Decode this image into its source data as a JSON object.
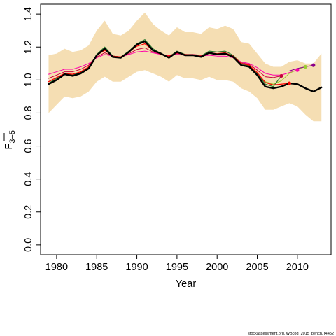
{
  "chart_data": {
    "type": "line",
    "xlabel": "Year",
    "ylabel_main": "F",
    "ylabel_sub": "3−5",
    "xlim": [
      1978,
      2014.2
    ],
    "ylim": [
      -0.06,
      1.46
    ],
    "xticks": [
      1980,
      1985,
      1990,
      1995,
      2000,
      2005,
      2010
    ],
    "yticks": [
      0.0,
      0.2,
      0.4,
      0.6,
      0.8,
      1.0,
      1.2,
      1.4
    ],
    "ytick_labels": [
      "0.0",
      "0.2",
      "0.4",
      "0.6",
      "0.8",
      "1.0",
      "1.2",
      "1.4"
    ],
    "grid": false,
    "band": {
      "color": "#f5deb3",
      "x": [
        1979,
        1980,
        1981,
        1982,
        1983,
        1984,
        1985,
        1986,
        1987,
        1988,
        1989,
        1990,
        1991,
        1992,
        1993,
        1994,
        1995,
        1996,
        1997,
        1998,
        1999,
        2000,
        2001,
        2002,
        2003,
        2004,
        2005,
        2006,
        2007,
        2008,
        2009,
        2010,
        2011,
        2012,
        2013
      ],
      "upper": [
        1.15,
        1.16,
        1.19,
        1.17,
        1.18,
        1.21,
        1.3,
        1.36,
        1.28,
        1.27,
        1.3,
        1.36,
        1.41,
        1.34,
        1.3,
        1.27,
        1.32,
        1.29,
        1.29,
        1.28,
        1.32,
        1.31,
        1.33,
        1.31,
        1.23,
        1.22,
        1.16,
        1.1,
        1.08,
        1.08,
        1.11,
        1.12,
        1.1,
        1.1,
        1.16
      ],
      "lower": [
        0.8,
        0.85,
        0.9,
        0.89,
        0.9,
        0.93,
        0.99,
        1.02,
        0.99,
        0.99,
        1.02,
        1.05,
        1.06,
        1.04,
        1.02,
        0.99,
        1.03,
        1.01,
        1.01,
        1.0,
        1.02,
        1.0,
        1.0,
        0.99,
        0.95,
        0.93,
        0.89,
        0.82,
        0.82,
        0.84,
        0.86,
        0.84,
        0.79,
        0.75,
        0.75
      ]
    },
    "series": [
      {
        "color": "#000000",
        "width": 2.4,
        "end_point": false,
        "x": [
          1979,
          1980,
          1981,
          1982,
          1983,
          1984,
          1985,
          1986,
          1987,
          1988,
          1989,
          1990,
          1991,
          1992,
          1993,
          1994,
          1995,
          1996,
          1997,
          1998,
          1999,
          2000,
          2001,
          2002,
          2003,
          2004,
          2005,
          2006,
          2007,
          2008,
          2009,
          2010,
          2011,
          2012,
          2013
        ],
        "y": [
          0.975,
          1.0,
          1.035,
          1.025,
          1.04,
          1.07,
          1.15,
          1.19,
          1.14,
          1.135,
          1.17,
          1.215,
          1.235,
          1.18,
          1.16,
          1.135,
          1.17,
          1.15,
          1.15,
          1.14,
          1.165,
          1.155,
          1.16,
          1.14,
          1.09,
          1.08,
          1.03,
          0.96,
          0.95,
          0.96,
          0.98,
          0.975,
          0.95,
          0.93,
          0.955
        ]
      },
      {
        "color": "#2e7d32",
        "width": 1.2,
        "end_point": false,
        "x": [
          1979,
          1980,
          1981,
          1982,
          1983,
          1984,
          1985,
          1986,
          1987,
          1988,
          1989,
          1990,
          1991,
          1992,
          1993,
          1994,
          1995,
          1996,
          1997,
          1998,
          1999,
          2000,
          2001,
          2002,
          2003,
          2004,
          2005,
          2006,
          2007,
          2008
        ],
        "y": [
          0.98,
          1.01,
          1.04,
          1.03,
          1.045,
          1.075,
          1.155,
          1.2,
          1.145,
          1.14,
          1.175,
          1.22,
          1.245,
          1.19,
          1.16,
          1.14,
          1.175,
          1.155,
          1.15,
          1.145,
          1.175,
          1.17,
          1.175,
          1.15,
          1.1,
          1.085,
          1.04,
          0.975,
          0.96,
          1.025
        ]
      },
      {
        "color": "#ff0000",
        "width": 1.2,
        "end_point": true,
        "x": [
          1979,
          1980,
          1981,
          1982,
          1983,
          1984,
          1985,
          1986,
          1987,
          1988,
          1989,
          1990,
          1991,
          1992,
          1993,
          1994,
          1995,
          1996,
          1997,
          1998,
          1999,
          2000,
          2001,
          2002,
          2003,
          2004,
          2005,
          2006,
          2007,
          2008,
          2009
        ],
        "y": [
          0.99,
          1.015,
          1.04,
          1.035,
          1.05,
          1.08,
          1.15,
          1.18,
          1.145,
          1.14,
          1.17,
          1.205,
          1.22,
          1.18,
          1.155,
          1.145,
          1.165,
          1.155,
          1.15,
          1.145,
          1.165,
          1.16,
          1.165,
          1.145,
          1.1,
          1.09,
          1.045,
          0.985,
          0.97,
          0.975,
          0.98
        ]
      },
      {
        "color": "#c8003c",
        "width": 1.0,
        "end_point": true,
        "x": [
          1979,
          1980,
          1981,
          1982,
          1983,
          1984,
          1985,
          1986,
          1987,
          1988,
          1989,
          1990,
          1991,
          1992,
          1993,
          1994,
          1995,
          1996,
          1997,
          1998,
          1999,
          2000,
          2001,
          2002,
          2003,
          2004,
          2005,
          2006,
          2007,
          2008
        ],
        "y": [
          1.01,
          1.03,
          1.05,
          1.05,
          1.065,
          1.09,
          1.14,
          1.165,
          1.145,
          1.14,
          1.16,
          1.185,
          1.195,
          1.17,
          1.155,
          1.15,
          1.16,
          1.155,
          1.155,
          1.15,
          1.16,
          1.155,
          1.155,
          1.14,
          1.105,
          1.095,
          1.06,
          1.02,
          1.015,
          1.025
        ]
      },
      {
        "color": "#ff00aa",
        "width": 1.0,
        "end_point": true,
        "x": [
          1979,
          1980,
          1981,
          1982,
          1983,
          1984,
          1985,
          1986,
          1987,
          1988,
          1989,
          1990,
          1991,
          1992,
          1993,
          1994,
          1995,
          1996,
          1997,
          1998,
          1999,
          2000,
          2001,
          2002,
          2003,
          2004,
          2005,
          2006,
          2007,
          2008,
          2009,
          2010
        ],
        "y": [
          1.035,
          1.05,
          1.065,
          1.065,
          1.08,
          1.1,
          1.135,
          1.155,
          1.145,
          1.14,
          1.155,
          1.17,
          1.175,
          1.165,
          1.155,
          1.15,
          1.155,
          1.15,
          1.15,
          1.145,
          1.15,
          1.145,
          1.145,
          1.135,
          1.11,
          1.1,
          1.075,
          1.04,
          1.03,
          1.03,
          1.045,
          1.06
        ]
      },
      {
        "color": "#9acd32",
        "width": 1.0,
        "end_point": true,
        "x": [
          2005,
          2006,
          2007,
          2008,
          2009,
          2010,
          2011
        ],
        "y": [
          1.03,
          0.99,
          0.975,
          0.995,
          1.04,
          1.065,
          1.08
        ]
      },
      {
        "color": "#8b008b",
        "width": 1.0,
        "end_point": true,
        "x": [
          2009,
          2010,
          2011,
          2012
        ],
        "y": [
          1.055,
          1.07,
          1.08,
          1.09
        ]
      }
    ]
  },
  "footer": {
    "credit": "stockassessment.org, WBcod_2015_bench, r4452"
  }
}
